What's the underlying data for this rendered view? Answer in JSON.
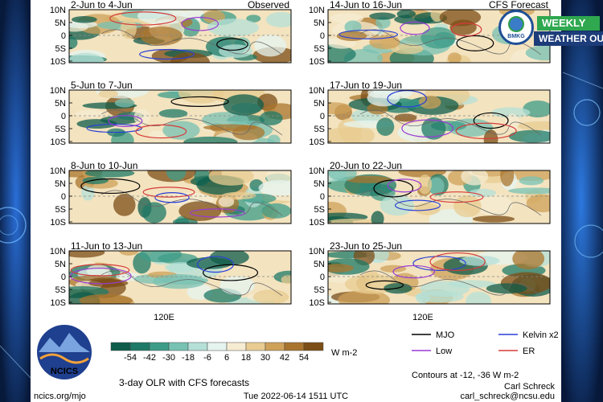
{
  "chart_data": {
    "type": "heatmap",
    "title": "3-day OLR with CFS forecasts",
    "panels": [
      {
        "label": "2-Jun to 4-Jun",
        "tag": "Observed"
      },
      {
        "label": "14-Jun to 16-Jun",
        "tag": "CFS Forecast"
      },
      {
        "label": "5-Jun to 7-Jun",
        "tag": ""
      },
      {
        "label": "17-Jun to 19-Jun",
        "tag": ""
      },
      {
        "label": "8-Jun to 10-Jun",
        "tag": ""
      },
      {
        "label": "20-Jun to 22-Jun",
        "tag": ""
      },
      {
        "label": "11-Jun to 13-Jun",
        "tag": ""
      },
      {
        "label": "23-Jun to 25-Jun",
        "tag": ""
      }
    ],
    "y_ticks": [
      "10N",
      "5N",
      "0",
      "5S",
      "10S"
    ],
    "x_tick": "120E",
    "colorbar": {
      "values": [
        "-54",
        "-42",
        "-30",
        "-18",
        "-6",
        "6",
        "18",
        "30",
        "42",
        "54"
      ],
      "unit": "W m-2",
      "colors": [
        "#0f5c4b",
        "#1e7a67",
        "#3d9c88",
        "#78c2b3",
        "#b5e0d7",
        "#e6f4f0",
        "#f6ecd2",
        "#e8cc92",
        "#cfa25a",
        "#a9752e",
        "#7c4e17"
      ]
    },
    "legend": [
      {
        "name": "MJO",
        "color": "#000000"
      },
      {
        "name": "Kelvin x2",
        "color": "#2a3fd6"
      },
      {
        "name": "Low",
        "color": "#9a3ad6"
      },
      {
        "name": "ER",
        "color": "#d63a3a"
      }
    ],
    "contours_note": "Contours at -12, -36 W m-2"
  },
  "credits": {
    "author": "Carl Schreck",
    "email": "carl_schreck@ncsu.edu",
    "source": "ncics.org/mjo",
    "timestamp": "Tue 2022-06-14 1511 UTC"
  },
  "logo": {
    "text": "NCICS"
  },
  "badge": {
    "line1": "WEEKLY",
    "line2": "WEATHER OUTLOOK",
    "org": "BMKG"
  }
}
